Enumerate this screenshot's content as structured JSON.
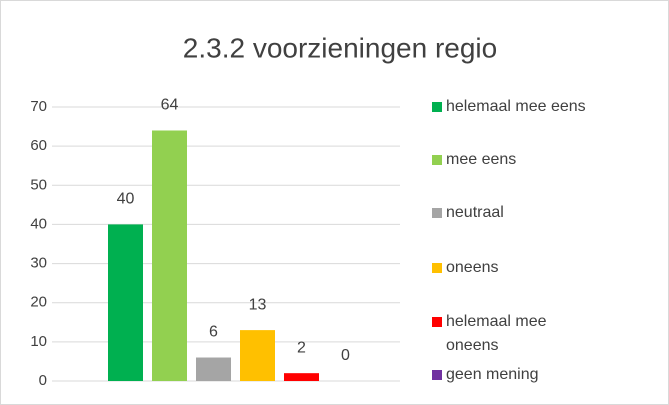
{
  "chart_data": {
    "type": "bar",
    "title": "2.3.2 voorzieningen regio",
    "categories": [
      null
    ],
    "series": [
      {
        "name": "helemaal mee eens",
        "color": "#00b050",
        "values": [
          40
        ]
      },
      {
        "name": "mee eens",
        "color": "#92d050",
        "values": [
          64
        ]
      },
      {
        "name": "neutraal",
        "color": "#a5a5a5",
        "values": [
          6
        ]
      },
      {
        "name": "oneens",
        "color": "#ffc000",
        "values": [
          13
        ]
      },
      {
        "name": "helemaal mee oneens",
        "color": "#ff0000",
        "values": [
          2
        ]
      },
      {
        "name": "geen mening",
        "color": "#7030a0",
        "values": [
          0
        ]
      }
    ],
    "ylim": [
      0,
      70
    ],
    "yticks": [
      0,
      10,
      20,
      30,
      40,
      50,
      60,
      70
    ],
    "grid": true,
    "legend": "right"
  }
}
